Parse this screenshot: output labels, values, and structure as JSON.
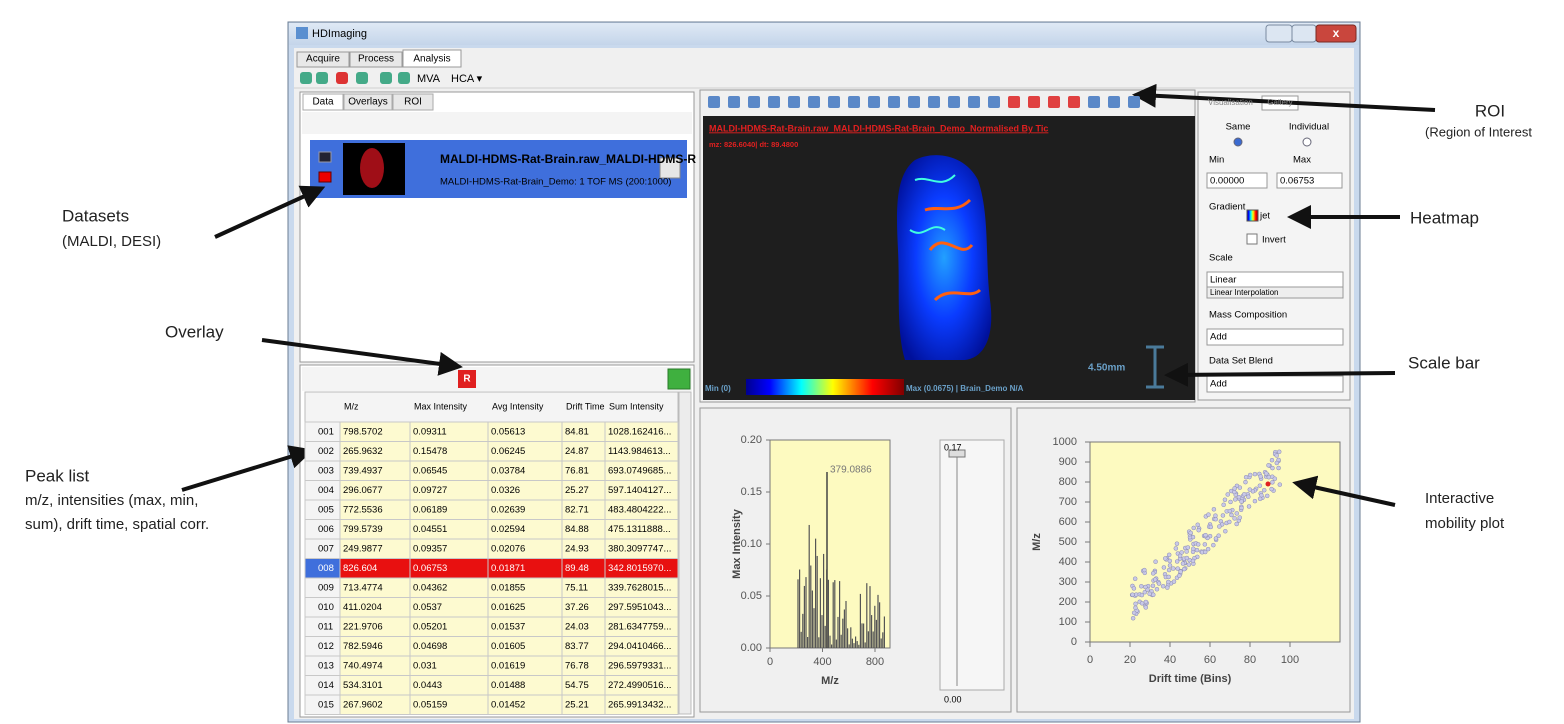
{
  "annotations": {
    "roi": [
      "ROI",
      "(Region of Interest"
    ],
    "heatmap": [
      "Heatmap"
    ],
    "scale_bar": [
      "Scale bar"
    ],
    "mobility": [
      "Interactive",
      "mobility plot"
    ],
    "datasets": [
      "Datasets",
      "(MALDI, DESI)"
    ],
    "overlay": [
      "Overlay"
    ],
    "peak_list": [
      "Peak list",
      "m/z, intensities (max, min,",
      "sum), drift time, spatial corr."
    ]
  },
  "window": {
    "title": "HDImaging",
    "tabs": [
      "Acquire",
      "Process",
      "Analysis"
    ],
    "toolbar": [
      "MVA",
      "HCA ▾"
    ]
  },
  "data_panel": {
    "tabs": [
      "Data",
      "Overlays",
      "ROI"
    ],
    "dataset": {
      "name": "MALDI-HDMS-Rat-Brain.raw_MALDI-HDMS-R",
      "detail": "MALDI-HDMS-Rat-Brain_Demo: 1 TOF MS (200:1000)"
    }
  },
  "peak_table": {
    "columns": [
      "M/z",
      "Max Intensity",
      "Avg Intensity",
      "Drift Time",
      "Sum Intensity"
    ],
    "selected_row": 7,
    "rows": [
      [
        "001",
        "798.5702",
        "0.09311",
        "0.05613",
        "84.81",
        "1028.162416..."
      ],
      [
        "002",
        "265.9632",
        "0.15478",
        "0.06245",
        "24.87",
        "1143.984613..."
      ],
      [
        "003",
        "739.4937",
        "0.06545",
        "0.03784",
        "76.81",
        "693.0749685..."
      ],
      [
        "004",
        "296.0677",
        "0.09727",
        "0.0326",
        "25.27",
        "597.1404127..."
      ],
      [
        "005",
        "772.5536",
        "0.06189",
        "0.02639",
        "82.71",
        "483.4804222..."
      ],
      [
        "006",
        "799.5739",
        "0.04551",
        "0.02594",
        "84.88",
        "475.1311888..."
      ],
      [
        "007",
        "249.9877",
        "0.09357",
        "0.02076",
        "24.93",
        "380.3097747..."
      ],
      [
        "008",
        "826.604",
        "0.06753",
        "0.01871",
        "89.48",
        "342.8015970..."
      ],
      [
        "009",
        "713.4774",
        "0.04362",
        "0.01855",
        "75.11",
        "339.7628015..."
      ],
      [
        "010",
        "411.0204",
        "0.0537",
        "0.01625",
        "37.26",
        "297.5951043..."
      ],
      [
        "011",
        "221.9706",
        "0.05201",
        "0.01537",
        "24.03",
        "281.6347759..."
      ],
      [
        "012",
        "782.5946",
        "0.04698",
        "0.01605",
        "83.77",
        "294.0410466..."
      ],
      [
        "013",
        "740.4974",
        "0.031",
        "0.01619",
        "76.78",
        "296.5979331..."
      ],
      [
        "014",
        "534.3101",
        "0.0443",
        "0.01488",
        "54.75",
        "272.4990516..."
      ],
      [
        "015",
        "267.9602",
        "0.05159",
        "0.01452",
        "25.21",
        "265.9913432..."
      ]
    ]
  },
  "image_view": {
    "title": "MALDI-HDMS-Rat-Brain.raw_MALDI-HDMS-Rat-Brain_Demo_Normalised By Tic",
    "cursor": "mz: 826.6040| dt: 89.4800",
    "scale_bar": "4.50mm",
    "min_label": "Min (0)",
    "max_label": "Max (0.0675) | Brain_Demo  N/A"
  },
  "settings": {
    "tabs": [
      "Visualisation",
      "Gallery"
    ],
    "same": "Same",
    "individual": "Individual",
    "min": "Min",
    "max": "Max",
    "min_value": "0.00000",
    "max_value": "0.06753",
    "gradient": "Gradient",
    "gradient_name": "jet",
    "invert": "Invert",
    "scale": "Scale",
    "scale_value": "Linear",
    "interpolation": "Linear Interpolation",
    "mass_composition": "Mass Composition",
    "mass_value": "Add",
    "blend": "Data Set Blend",
    "blend_value": "Add"
  },
  "spectrum": {
    "y_label": "Max Intensity",
    "x_label": "M/z",
    "yticks": [
      "0.00",
      "0.05",
      "0.10",
      "0.15",
      "0.20"
    ],
    "xticks": [
      "0",
      "400",
      "800"
    ],
    "peak_label": "379.0886",
    "slider_max": "0.17",
    "slider_min": "0.00"
  },
  "mobility": {
    "y_label": "M/z",
    "x_label": "Drift time (Bins)",
    "yticks": [
      0,
      100,
      200,
      300,
      400,
      500,
      600,
      700,
      800,
      900,
      1000
    ],
    "xticks": [
      0,
      20,
      40,
      60,
      80,
      100
    ]
  }
}
